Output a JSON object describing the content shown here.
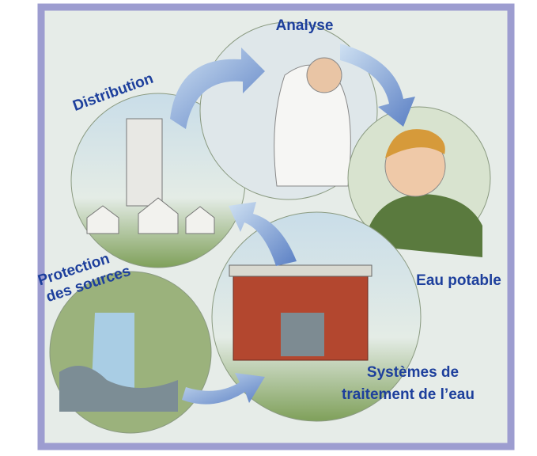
{
  "nodes": [
    {
      "label": "Analyse"
    },
    {
      "label": "Distribution"
    },
    {
      "label": "Eau potable"
    },
    {
      "lines": [
        "Protection",
        "des sources"
      ]
    },
    {
      "lines": [
        "Systèmes de",
        "traitement de l’eau"
      ]
    }
  ]
}
